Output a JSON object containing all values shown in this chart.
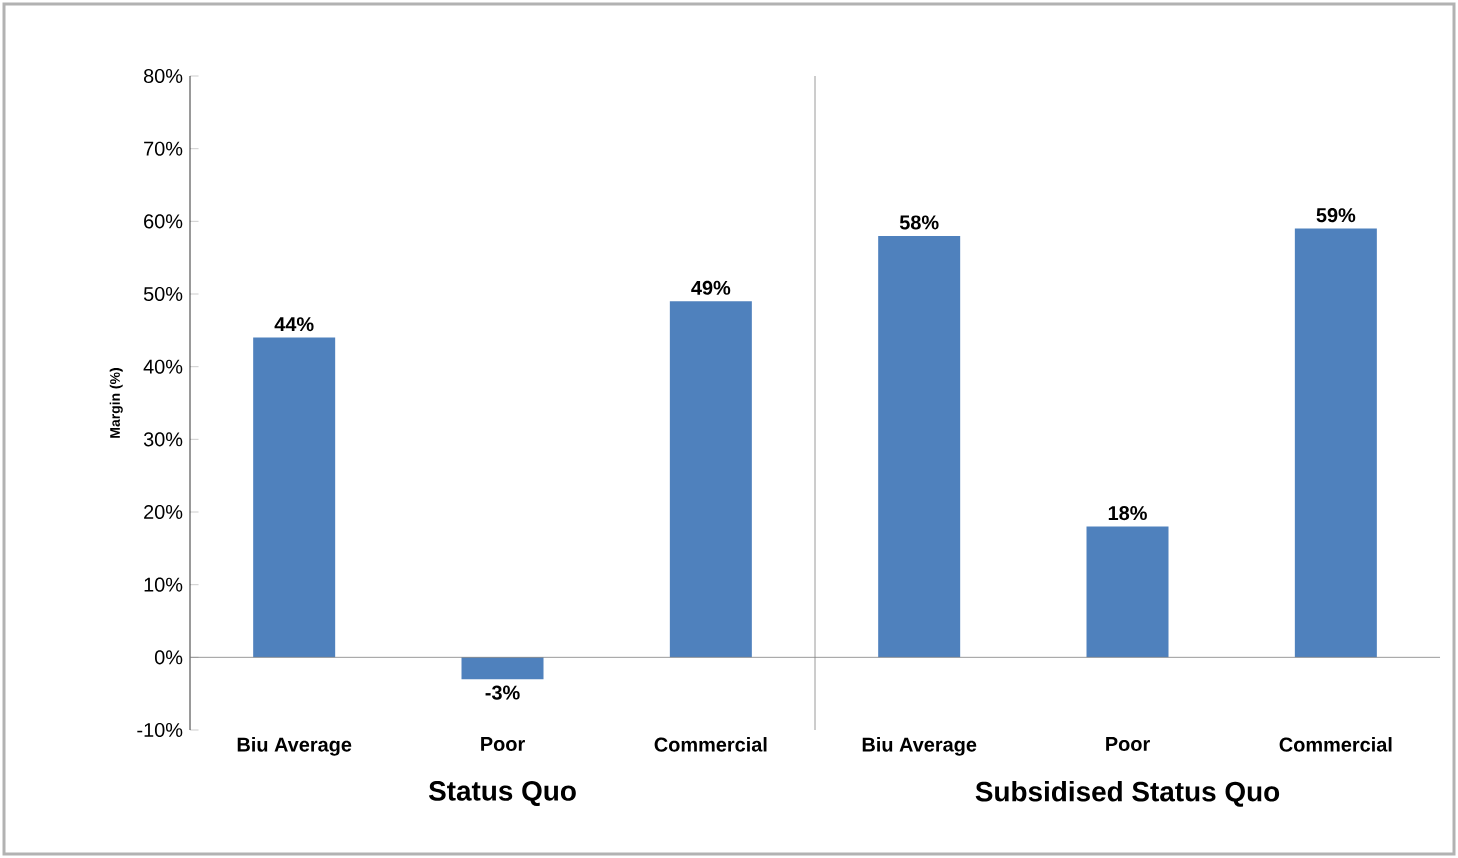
{
  "chart_data": {
    "type": "bar",
    "ylabel": "Margin (%)",
    "categories": [
      "Biu Average",
      "Poor",
      "Commercial",
      "Biu Average",
      "Poor",
      "Commercial"
    ],
    "values": [
      44,
      -3,
      49,
      58,
      18,
      59
    ],
    "value_labels": [
      "44%",
      "-3%",
      "49%",
      "58%",
      "18%",
      "59%"
    ],
    "color": "#4f81bd",
    "ylim": [
      -10,
      80
    ],
    "yticks": [
      {
        "value": -10,
        "label": "-10%"
      },
      {
        "value": 0,
        "label": "0%"
      },
      {
        "value": 10,
        "label": "10%"
      },
      {
        "value": 20,
        "label": "20%"
      },
      {
        "value": 30,
        "label": "30%"
      },
      {
        "value": 40,
        "label": "40%"
      },
      {
        "value": 50,
        "label": "50%"
      },
      {
        "value": 60,
        "label": "60%"
      },
      {
        "value": 70,
        "label": "70%"
      },
      {
        "value": 80,
        "label": "80%"
      }
    ],
    "annotations": [
      "Status Quo",
      "Subsidised Status Quo"
    ]
  }
}
